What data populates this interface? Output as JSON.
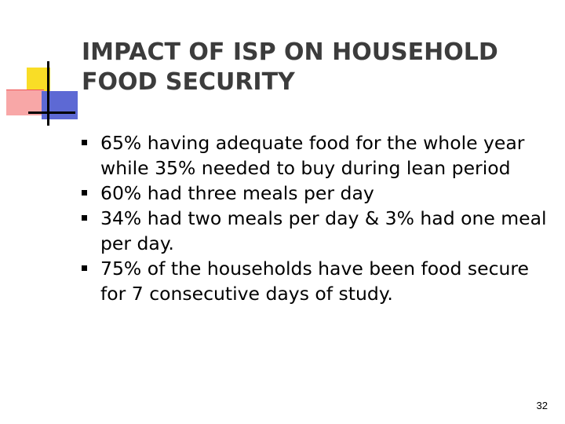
{
  "slide": {
    "title_line1": "IMPACT OF ISP ON HOUSEHOLD",
    "title_line2": "FOOD SECURITY",
    "bullets": [
      {
        "text": "65% having adequate food for the whole year while 35% needed to buy during lean period"
      },
      {
        "text": "60% had three meals per day"
      },
      {
        "text": "34% had two meals per day & 3% had one meal per day."
      },
      {
        "text": "75% of the households have been food secure for 7 consecutive days of study."
      }
    ],
    "page_number": "32"
  },
  "colors": {
    "title": "#3c3c3c",
    "deco_yellow": "#f9dd26",
    "deco_red": "#f8a7a7",
    "deco_blue": "#5d69d4"
  }
}
